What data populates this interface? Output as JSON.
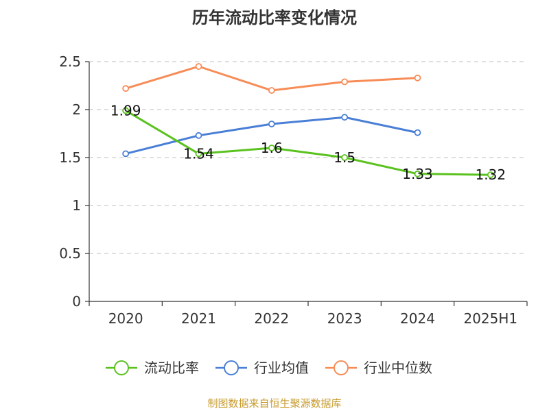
{
  "title": "历年流动比率变化情况",
  "source": "制图数据来自恒生聚源数据库",
  "chart_data": {
    "type": "line",
    "title": "历年流动比率变化情况",
    "categories": [
      "2020",
      "2021",
      "2022",
      "2023",
      "2024",
      "2025H1"
    ],
    "y_ticks": [
      "0",
      "0.5",
      "1",
      "1.5",
      "2",
      "2.5"
    ],
    "ylim": [
      0,
      2.5
    ],
    "grid": true,
    "legend_position": "bottom",
    "series": [
      {
        "name": "流动比率",
        "color": "#5ac21e",
        "labels": true,
        "values": [
          1.99,
          1.54,
          1.6,
          1.5,
          1.33,
          1.32
        ]
      },
      {
        "name": "行业均值",
        "color": "#4a7fd6",
        "labels": false,
        "values": [
          1.54,
          1.73,
          1.85,
          1.92,
          1.76,
          null
        ]
      },
      {
        "name": "行业中位数",
        "color": "#f78c57",
        "labels": false,
        "values": [
          2.22,
          2.45,
          2.2,
          2.29,
          2.33,
          null
        ]
      }
    ]
  }
}
